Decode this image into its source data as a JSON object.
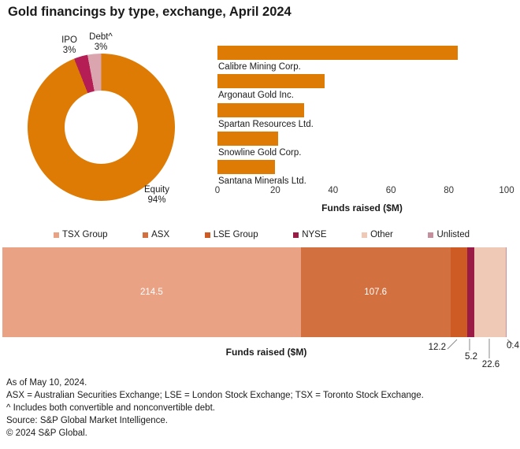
{
  "title": "Gold financings by type, exchange, April 2024",
  "chart_data": [
    {
      "type": "pie",
      "title": "Gold financings by type",
      "donut": true,
      "slices": [
        {
          "label": "Equity",
          "pct": 94,
          "pct_label": "94%",
          "color": "#DD7B05"
        },
        {
          "label": "IPO",
          "pct": 3,
          "pct_label": "3%",
          "color": "#B41E55"
        },
        {
          "label": "Debt^",
          "pct": 3,
          "pct_label": "3%",
          "color": "#DAA5AF"
        }
      ]
    },
    {
      "type": "bar",
      "title": "Top gold financings by company",
      "categories": [
        "Calibre Mining Corp.",
        "Argonaut Gold Inc.",
        "Spartan Resources Ltd.",
        "Snowline Gold Corp.",
        "Santana Minerals Ltd."
      ],
      "values": [
        83,
        37,
        30,
        21,
        20
      ],
      "bar_color": "#DD7B05",
      "xlabel": "Funds raised ($M)",
      "xlim": [
        0,
        100
      ],
      "xticks": [
        0,
        20,
        40,
        60,
        80,
        100
      ],
      "grid": false,
      "orientation": "horizontal"
    },
    {
      "type": "stacked-bar",
      "title": "Gold financings by exchange",
      "xlabel": "Funds raised ($M)",
      "legend_position": "top",
      "segments": [
        {
          "label": "TSX Group",
          "value": 214.5,
          "display": "214.5",
          "color": "#E9A284",
          "label_inside": true
        },
        {
          "label": "ASX",
          "value": 107.6,
          "display": "107.6",
          "color": "#D2703F",
          "label_inside": true
        },
        {
          "label": "LSE Group",
          "value": 12.2,
          "display": "12.2",
          "color": "#CE5A24",
          "label_inside": false
        },
        {
          "label": "NYSE",
          "value": 5.2,
          "display": "5.2",
          "color": "#9A1B45",
          "label_inside": false
        },
        {
          "label": "Other",
          "value": 22.6,
          "display": "22.6",
          "color": "#F0C8B6",
          "label_inside": false
        },
        {
          "label": "Unlisted",
          "value": 0.4,
          "display": "0.4",
          "color": "#C4909E",
          "label_inside": false
        }
      ]
    }
  ],
  "leader_line_color": "#8a8a8a",
  "footer": {
    "lines": [
      "As of May 10, 2024.",
      "ASX = Australian Securities Exchange; LSE = London Stock Exchange; TSX = Toronto Stock Exchange.",
      "^ Includes both convertible and nonconvertible debt.",
      "Source: S&P Global Market Intelligence.",
      "© 2024 S&P Global."
    ]
  }
}
